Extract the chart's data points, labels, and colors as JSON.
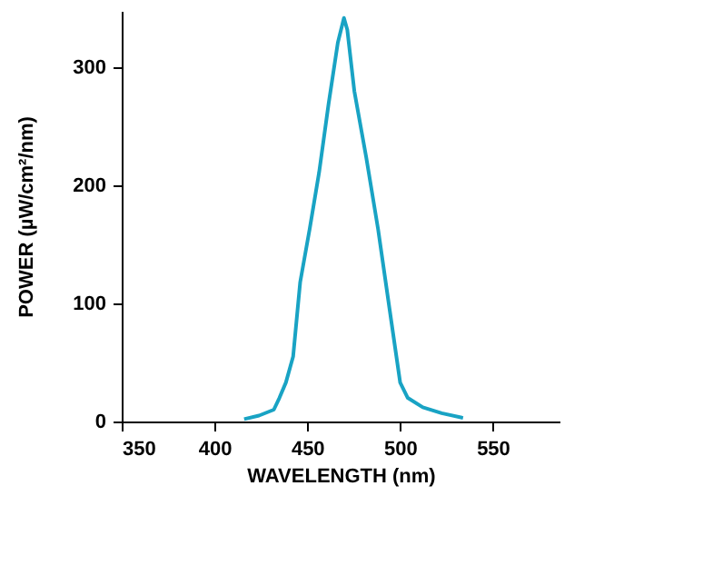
{
  "chart_data": {
    "type": "line",
    "xlabel": "WAVELENGTH (nm)",
    "ylabel": "POWER (µW/cm²/nm)",
    "xlim": [
      350,
      586
    ],
    "xticks": [
      350,
      400,
      450,
      500,
      550
    ],
    "ylim": [
      0,
      348
    ],
    "yticks": [
      0,
      100,
      200,
      300
    ],
    "grid": false,
    "legend": false,
    "marker": "none",
    "line_style": "solid",
    "series": [
      {
        "color": "#19a3c4",
        "x": [
          416,
          424,
          432,
          435,
          438.5,
          442.4,
          446.2,
          451.3,
          456.4,
          461.5,
          466.5,
          469.8,
          471.6,
          475.4,
          481.8,
          488.2,
          494.5,
          500.1,
          504.2,
          512.3,
          522.5,
          534
        ],
        "values": [
          2,
          5,
          10,
          20,
          33,
          55,
          118,
          163,
          211,
          269,
          321,
          342,
          332,
          280,
          224,
          163,
          94,
          33,
          20,
          12,
          7,
          3
        ]
      }
    ]
  }
}
